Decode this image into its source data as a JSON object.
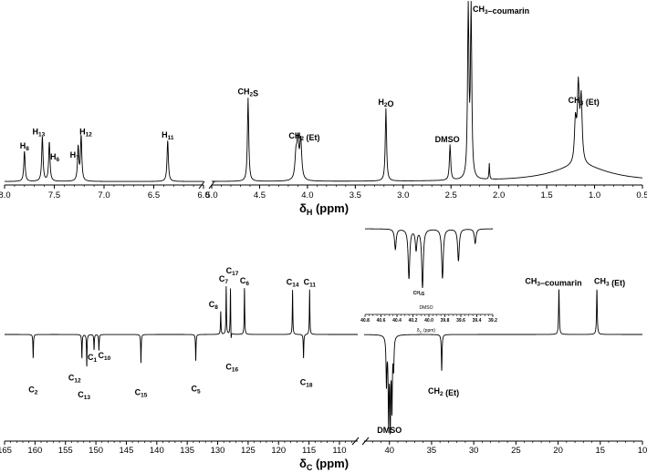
{
  "chart_data": [
    {
      "type": "line",
      "panel": "1H NMR spectrum",
      "xlabel": "δH (ppm)",
      "xlabel_main": "δ",
      "xlabel_sub": "H",
      "xlabel_unit": " (ppm)",
      "axis_reversed": true,
      "segments": [
        {
          "xlim": [
            8.0,
            6.0
          ]
        },
        {
          "xlim": [
            5.0,
            0.5
          ]
        }
      ],
      "ticks": [
        "8.0",
        "7.5",
        "7.0",
        "6.5",
        "6.0",
        "5.0",
        "4.5",
        "4.0",
        "3.5",
        "3.0",
        "2.5",
        "2.0",
        "1.5",
        "1.0",
        "0.5"
      ],
      "tick_values": [
        8.0,
        7.5,
        7.0,
        6.5,
        6.0,
        5.0,
        4.5,
        4.0,
        3.5,
        3.0,
        2.5,
        2.0,
        1.5,
        1.0,
        0.5
      ],
      "peaks": [
        {
          "label": "H8",
          "x": 7.8,
          "y": 0.17
        },
        {
          "label": "H13",
          "x": 7.62,
          "y": 0.25
        },
        {
          "label": "H6",
          "x": 7.55,
          "y": 0.22
        },
        {
          "label": "H7",
          "x": 7.26,
          "y": 0.19
        },
        {
          "label": "H12",
          "x": 7.23,
          "y": 0.25
        },
        {
          "label": "H11",
          "x": 6.36,
          "y": 0.23
        },
        {
          "label": "CH2S",
          "x": 4.62,
          "y": 0.47
        },
        {
          "label": "CH2 (Et)",
          "x": 4.09,
          "y": 0.22
        },
        {
          "label": "H2O",
          "x": 3.18,
          "y": 0.41
        },
        {
          "label": "DMSO",
          "x": 2.51,
          "y": 0.2
        },
        {
          "label": "CH3–coumarin",
          "x": 2.32,
          "y": 1.0
        },
        {
          "label": "CH3 (Et)",
          "x": 1.17,
          "y": 0.42
        }
      ]
    },
    {
      "type": "line",
      "panel": "13C APT spectrum",
      "xlabel": "δC (ppm)",
      "xlabel_main": "δ",
      "xlabel_sub": "C",
      "xlabel_unit": " (ppm)",
      "axis_reversed": true,
      "segments": [
        {
          "xlim": [
            165,
            107
          ]
        },
        {
          "xlim": [
            43,
            10
          ]
        }
      ],
      "ticks": [
        "165",
        "160",
        "155",
        "150",
        "145",
        "140",
        "135",
        "130",
        "125",
        "120",
        "115",
        "110",
        "40",
        "35",
        "30",
        "25",
        "20",
        "15",
        "10"
      ],
      "tick_values": [
        165,
        160,
        155,
        150,
        145,
        140,
        135,
        130,
        125,
        120,
        115,
        110,
        40,
        35,
        30,
        25,
        20,
        15,
        10
      ],
      "peaks": [
        {
          "label": "C2",
          "x": 160.3,
          "y": -0.28
        },
        {
          "label": "C12",
          "x": 152.3,
          "y": -0.28
        },
        {
          "label": "C13",
          "x": 151.5,
          "y": -0.38
        },
        {
          "label": "C1",
          "x": 150.3,
          "y": -0.18
        },
        {
          "label": "C10",
          "x": 149.5,
          "y": -0.19
        },
        {
          "label": "C15",
          "x": 142.6,
          "y": -0.33
        },
        {
          "label": "C5",
          "x": 133.6,
          "y": -0.31
        },
        {
          "label": "C8",
          "x": 129.5,
          "y": 0.28
        },
        {
          "label": "C7",
          "x": 128.6,
          "y": 0.59
        },
        {
          "label": "C17",
          "x": 127.9,
          "y": 0.59
        },
        {
          "label": "C16",
          "x": 127.8,
          "y": -0.15
        },
        {
          "label": "C6",
          "x": 125.6,
          "y": 0.58
        },
        {
          "label": "C14",
          "x": 117.7,
          "y": 0.55
        },
        {
          "label": "C18",
          "x": 115.9,
          "y": -0.28
        },
        {
          "label": "C11",
          "x": 114.9,
          "y": 0.55
        },
        {
          "label": "DMSO",
          "x": 40.0,
          "y": -1.0
        },
        {
          "label": "CH2 (Et)",
          "x": 33.8,
          "y": -0.42
        },
        {
          "label": "CH3–coumarin",
          "x": 19.9,
          "y": 0.55
        },
        {
          "label": "CH3 (Et)",
          "x": 15.4,
          "y": 0.55
        }
      ],
      "inset": {
        "xlabel": "δC (ppm)",
        "title": "DMSO",
        "peak_label": "CH2S",
        "xlim": [
          40.8,
          39.2
        ],
        "ticks": [
          "40.8",
          "40.6",
          "40.4",
          "40.2",
          "40.0",
          "39.8",
          "39.6",
          "39.4",
          "39.2"
        ],
        "tick_values": [
          40.8,
          40.6,
          40.4,
          40.2,
          40.0,
          39.8,
          39.6,
          39.4,
          39.2
        ],
        "peaks": [
          {
            "x": 40.42,
            "y": -0.35
          },
          {
            "x": 40.25,
            "y": -0.85
          },
          {
            "x": 40.16,
            "y": -0.35
          },
          {
            "x": 40.08,
            "y": -1.0
          },
          {
            "x": 39.83,
            "y": -0.85
          },
          {
            "x": 39.63,
            "y": -0.55
          },
          {
            "x": 39.42,
            "y": -0.25
          }
        ]
      }
    }
  ]
}
